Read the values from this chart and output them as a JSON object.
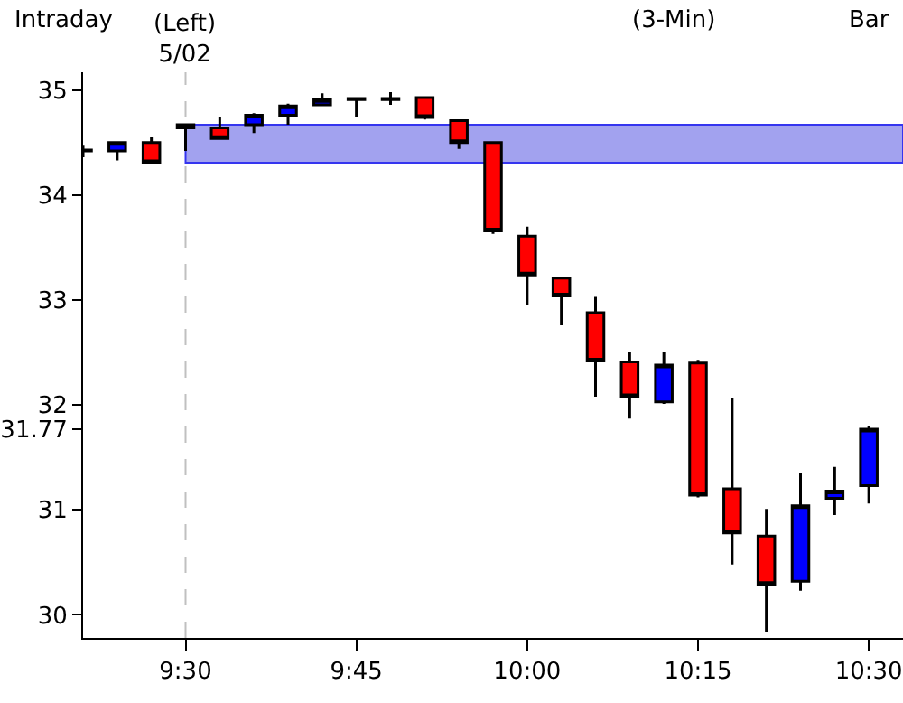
{
  "chart_data": {
    "type": "candlestick",
    "title": "Intraday",
    "subtitle": "(3-Min)",
    "annotations": [
      "Bar"
    ],
    "x": [
      9.35,
      9.4,
      9.45,
      9.5,
      9.55,
      9.6,
      9.65,
      9.7,
      9.75,
      9.8,
      9.85,
      9.9,
      9.95,
      10.0,
      10.05,
      10.1,
      10.15,
      10.2,
      10.25,
      10.3,
      10.35,
      10.4,
      10.45,
      10.5
    ],
    "ohlc": [
      [
        34.42,
        34.47,
        34.36,
        34.43
      ],
      [
        34.42,
        34.5,
        34.33,
        34.5
      ],
      [
        34.5,
        34.55,
        34.3,
        34.31
      ],
      [
        34.67,
        34.68,
        34.42,
        34.64
      ],
      [
        34.64,
        34.74,
        34.53,
        34.54
      ],
      [
        34.67,
        34.78,
        34.59,
        34.76
      ],
      [
        34.76,
        34.87,
        34.67,
        34.85
      ],
      [
        34.86,
        34.97,
        34.85,
        34.91
      ],
      [
        34.92,
        34.92,
        34.74,
        34.91
      ],
      [
        34.91,
        34.98,
        34.86,
        34.92
      ],
      [
        34.93,
        34.93,
        34.72,
        34.74
      ],
      [
        34.71,
        34.72,
        34.44,
        34.5
      ],
      [
        34.5,
        34.5,
        33.63,
        33.66
      ],
      [
        33.61,
        33.7,
        32.95,
        33.24
      ],
      [
        33.21,
        33.21,
        32.76,
        33.04
      ],
      [
        32.88,
        33.03,
        32.08,
        32.42
      ],
      [
        32.41,
        32.5,
        31.87,
        32.08
      ],
      [
        32.03,
        32.51,
        32.01,
        32.38
      ],
      [
        32.4,
        32.43,
        31.12,
        31.14
      ],
      [
        31.2,
        32.07,
        30.48,
        30.78
      ],
      [
        30.75,
        31.01,
        29.84,
        30.29
      ],
      [
        30.32,
        31.35,
        30.23,
        31.04
      ],
      [
        31.11,
        31.41,
        30.95,
        31.18
      ],
      [
        31.23,
        31.8,
        31.06,
        31.77
      ]
    ],
    "colors": [
      "#000000",
      "#0000ff",
      "#ff0000",
      "#ff0000",
      "#ff0000",
      "#0000ff",
      "#0000ff",
      "#0000ff",
      "#000000",
      "#000000",
      "#ff0000",
      "#ff0000",
      "#ff0000",
      "#ff0000",
      "#ff0000",
      "#ff0000",
      "#ff0000",
      "#0000ff",
      "#ff0000",
      "#ff0000",
      "#ff0000",
      "#0000ff",
      "#0000ff",
      "#0000ff"
    ],
    "xlim": [
      9.35,
      10.55
    ],
    "xticks": [
      {
        "value": 9.5,
        "label": "9:30"
      },
      {
        "value": 9.75,
        "label": "9:45"
      },
      {
        "value": 10.0,
        "label": "10:00"
      },
      {
        "value": 10.25,
        "label": "10:15"
      },
      {
        "value": 10.5,
        "label": "10:30"
      }
    ],
    "ylim": [
      29.78,
      35.17
    ],
    "yticks": [
      30,
      31,
      {
        "value": 31.77,
        "label": "31.77"
      },
      32,
      33,
      34,
      35
    ],
    "ref_lines": [
      {
        "axis": "x",
        "value": 9.5,
        "label": "(Left)\n5/02",
        "color": "#c0c0c0",
        "line_style": "dashed"
      }
    ],
    "bands": [
      {
        "axis": "y",
        "from": 34.31,
        "to": 34.67,
        "color": "#9999ee"
      }
    ],
    "grid": false,
    "legend": false
  }
}
